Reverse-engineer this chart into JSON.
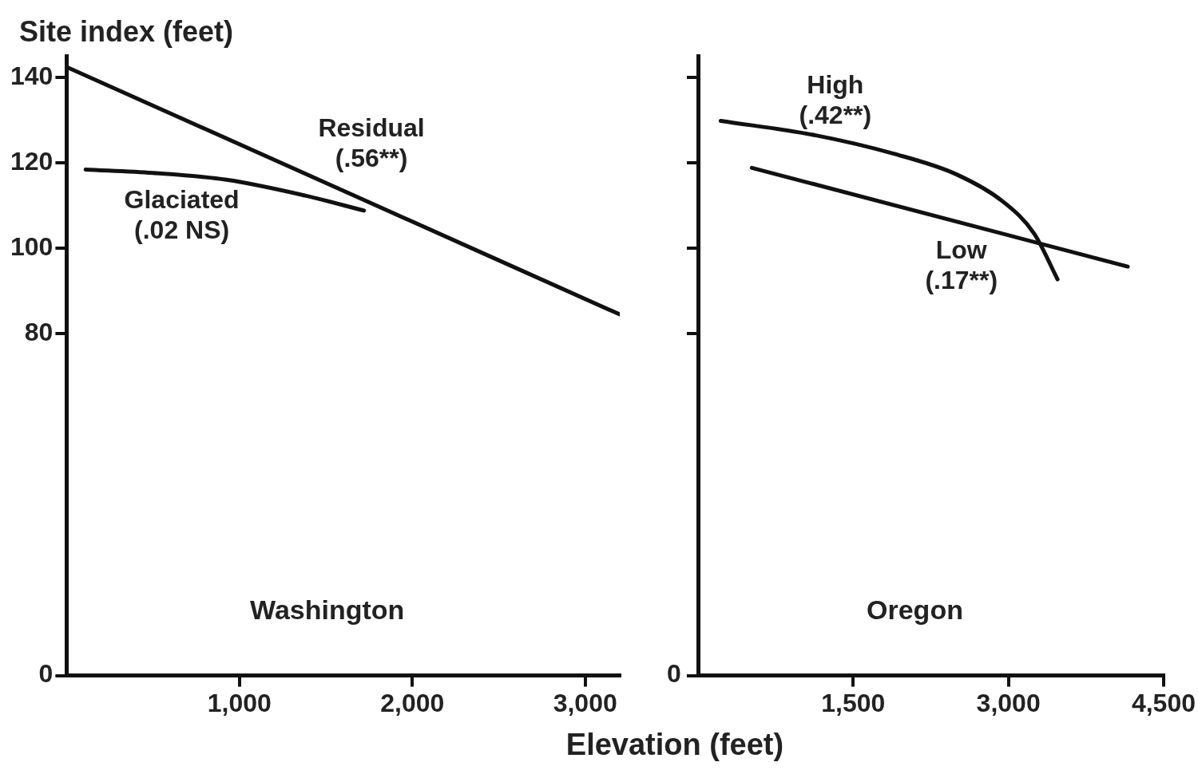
{
  "chart_data": [
    {
      "type": "line",
      "title": "Washington",
      "ylabel": "Site index (feet)",
      "xlabel": "Elevation (feet)",
      "xlim": [
        0,
        3200
      ],
      "xticks": [
        {
          "value": 1000,
          "label": "1,000"
        },
        {
          "value": 2000,
          "label": "2,000"
        },
        {
          "value": 3000,
          "label": "3,000"
        }
      ],
      "ylim": [
        0,
        145
      ],
      "yticks": [
        0,
        80,
        100,
        120,
        140
      ],
      "grid": false,
      "legend": false,
      "marker": "none",
      "line_style": "solid",
      "series": [
        {
          "name": "Residual\n(.56**)",
          "color": "#111111",
          "x": [
            0,
            3200
          ],
          "values": [
            142.4,
            84.5
          ]
        },
        {
          "name": "Glaciated\n(.02 NS)",
          "color": "#111111",
          "x": [
            110,
            500,
            925,
            1380,
            1720
          ],
          "values": [
            118.4,
            117.6,
            116.0,
            112.3,
            108.8
          ]
        }
      ]
    },
    {
      "type": "line",
      "title": "Oregon",
      "xlim": [
        0,
        4500
      ],
      "xticks": [
        {
          "value": 1500,
          "label": "1,500"
        },
        {
          "value": 3000,
          "label": "3,000"
        },
        {
          "value": 4500,
          "label": "4,500"
        }
      ],
      "ylim": [
        0,
        145
      ],
      "yticks": [
        0,
        80,
        100,
        120,
        140
      ],
      "tick_labels": "x",
      "annotations": [
        "0"
      ],
      "grid": false,
      "legend": false,
      "marker": "none",
      "line_style": "solid",
      "series": [
        {
          "name": "High\n(.42**)",
          "color": "#111111",
          "x": [
            219,
            1138,
            1892,
            2495,
            2947,
            3249,
            3475
          ],
          "values": [
            129.8,
            126.4,
            122.1,
            117.3,
            110.9,
            103.4,
            92.7
          ]
        },
        {
          "name": "Low\n(.17**)",
          "color": "#111111",
          "x": [
            520,
            4153
          ],
          "values": [
            118.8,
            95.7
          ]
        }
      ]
    }
  ]
}
